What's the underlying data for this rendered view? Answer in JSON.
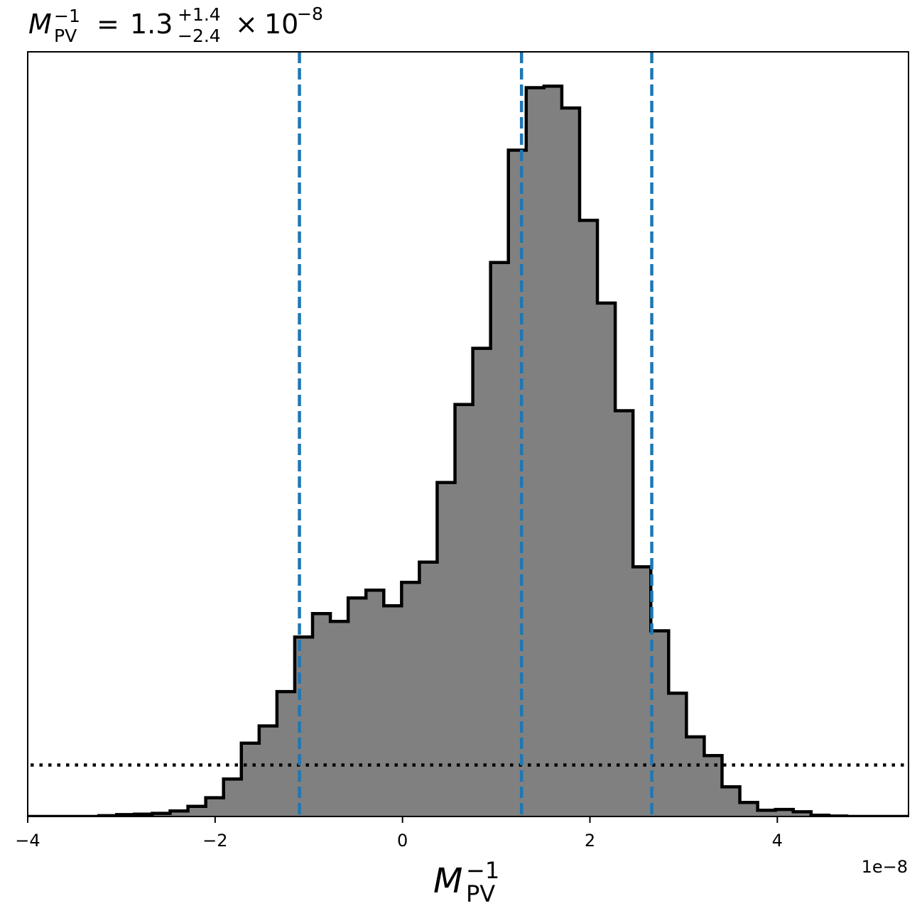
{
  "chart_data": {
    "type": "histogram",
    "title": {
      "symbol": "M",
      "sup": "−1",
      "sub": "PV",
      "equals": "=",
      "value": "1.3",
      "err_plus": "+1.4",
      "err_minus": "−2.4",
      "times": "×",
      "base": "10",
      "exponent": "−8"
    },
    "xlabel": {
      "symbol": "M",
      "sup": "−1",
      "sub": "PV"
    },
    "x_offset_label": "1e−8",
    "xlim": [
      -4.0,
      5.4
    ],
    "ylim": [
      0,
      0.49
    ],
    "xticks": [
      -4,
      -2,
      0,
      2,
      4
    ],
    "xtick_labels": [
      "−4",
      "−2",
      "0",
      "2",
      "4"
    ],
    "yticks_shown": false,
    "bin_edges": [
      -4.0,
      -3.81,
      -3.62,
      -3.43,
      -3.24,
      -3.05,
      -2.86,
      -2.67,
      -2.48,
      -2.29,
      -2.1,
      -1.91,
      -1.72,
      -1.53,
      -1.34,
      -1.15,
      -0.96,
      -0.77,
      -0.58,
      -0.39,
      -0.2,
      -0.01,
      0.18,
      0.37,
      0.56,
      0.75,
      0.94,
      1.13,
      1.32,
      1.51,
      1.7,
      1.89,
      2.08,
      2.27,
      2.46,
      2.65,
      2.84,
      3.03,
      3.22,
      3.41,
      3.6,
      3.79,
      3.98,
      4.17,
      4.36,
      4.55,
      4.74,
      4.93,
      5.12,
      5.31,
      5.4
    ],
    "counts": [
      0.0,
      0.0,
      0.0,
      0.0,
      0.0005,
      0.0012,
      0.0015,
      0.002,
      0.0035,
      0.0065,
      0.012,
      0.024,
      0.047,
      0.058,
      0.08,
      0.115,
      0.13,
      0.125,
      0.14,
      0.145,
      0.135,
      0.15,
      0.163,
      0.214,
      0.264,
      0.3,
      0.355,
      0.427,
      0.467,
      0.468,
      0.454,
      0.382,
      0.329,
      0.26,
      0.16,
      0.119,
      0.079,
      0.051,
      0.039,
      0.019,
      0.009,
      0.004,
      0.0045,
      0.003,
      0.0008,
      0.0003,
      0.0,
      0.0,
      0.0,
      0.0
    ],
    "bar_color": "#808080",
    "edge_color": "#000000",
    "quantile_lines": [
      -1.1,
      1.27,
      2.66
    ],
    "quantile_color": "#1f77b4",
    "prior_level": 0.033,
    "prior_color": "#000000",
    "grid": false,
    "legend": "none"
  }
}
